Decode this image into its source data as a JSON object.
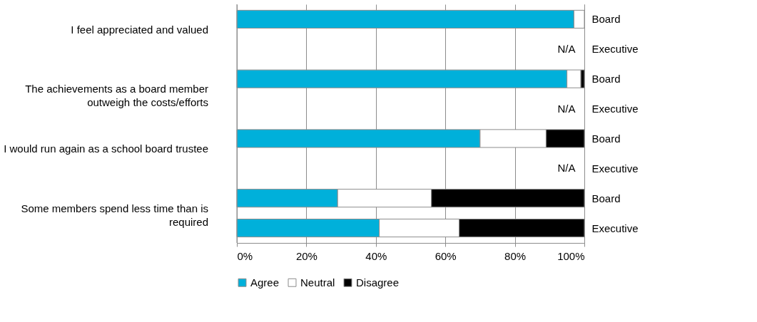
{
  "chart_data": {
    "type": "bar",
    "orientation": "horizontal",
    "stacked": true,
    "categories": [
      "Board",
      "Executive",
      "Board",
      "Executive",
      "Board",
      "Executive",
      "Board",
      "Executive"
    ],
    "series": [
      {
        "name": "Agree",
        "color": "#00b0da",
        "values": [
          97,
          null,
          95,
          null,
          70,
          null,
          29,
          41
        ]
      },
      {
        "name": "Neutral",
        "color": "#ffffff",
        "values": [
          3,
          null,
          4,
          null,
          19,
          null,
          27,
          23
        ]
      },
      {
        "name": "Disagree",
        "color": "#000000",
        "values": [
          null,
          null,
          1,
          null,
          11,
          null,
          44,
          36
        ]
      }
    ],
    "xlim": [
      0,
      100
    ],
    "xticks": [
      {
        "value": 0,
        "label": "0%"
      },
      {
        "value": 20,
        "label": "20%"
      },
      {
        "value": 40,
        "label": "40%"
      },
      {
        "value": 60,
        "label": "60%"
      },
      {
        "value": 80,
        "label": "80%"
      },
      {
        "value": 100,
        "label": "100%"
      }
    ],
    "grid": "x",
    "legend": "bottom",
    "annotations": [
      "I feel appreciated and valued",
      "The achievements as a board member outweigh the costs/efforts",
      "I would run again as a school board trustee",
      "Some members spend less time than is required",
      "N/A",
      "N/A",
      "N/A"
    ]
  }
}
